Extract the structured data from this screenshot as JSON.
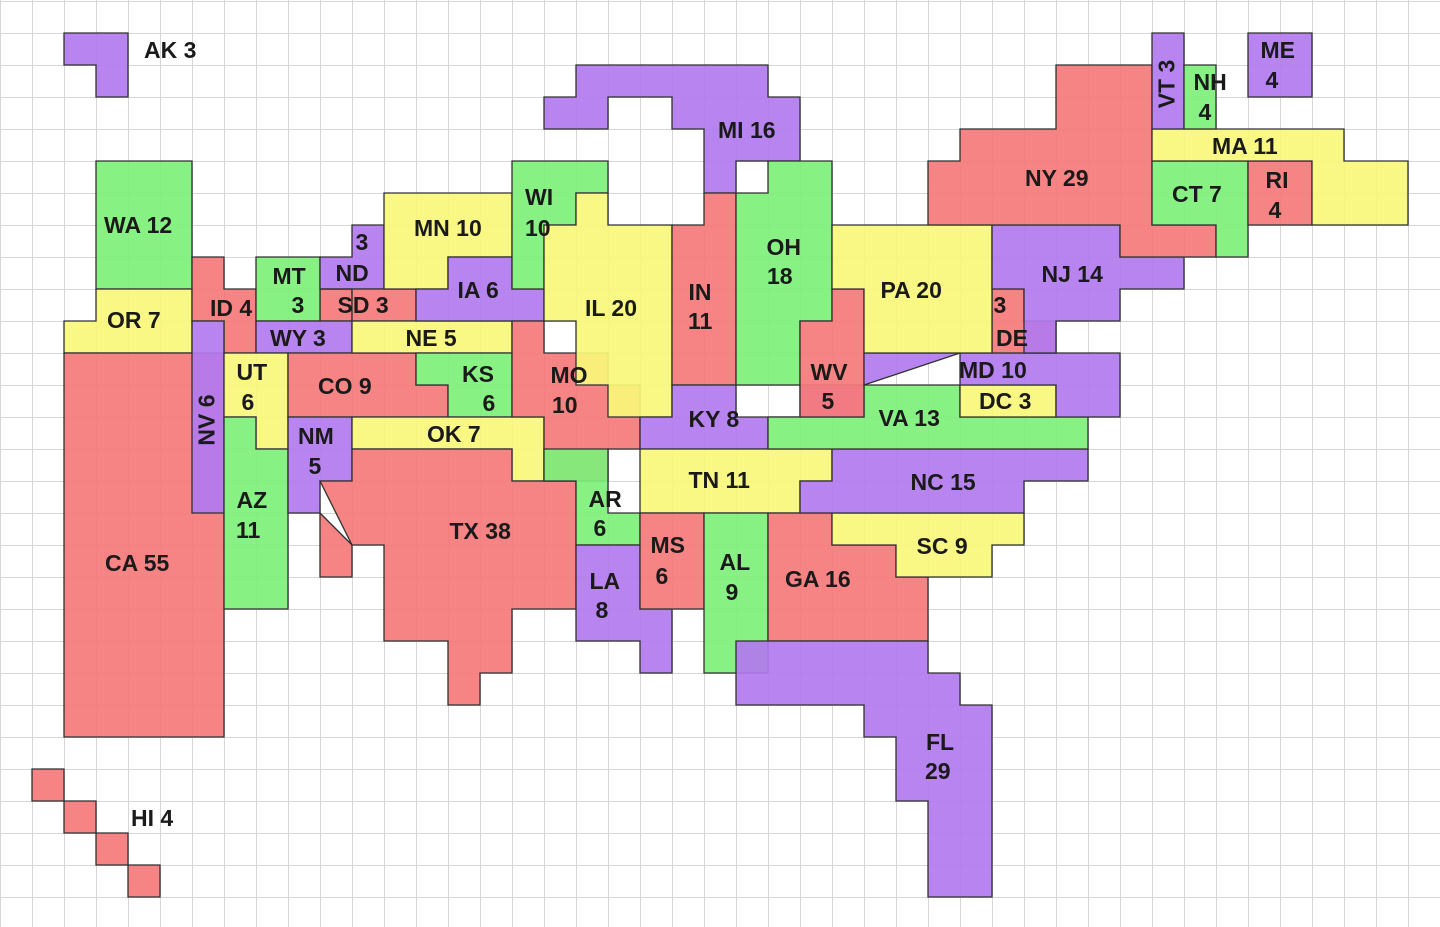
{
  "colors": {
    "red": "#f5797a",
    "purple": "#b279ef",
    "yellow": "#f9f77a",
    "green": "#7ef07a",
    "border": "#303030",
    "grid": "#d6d6d6"
  },
  "states": [
    {
      "code": "AK",
      "votes": 3,
      "label": "AK 3",
      "color": "purple"
    },
    {
      "code": "HI",
      "votes": 4,
      "label": "HI 4",
      "color": "red"
    },
    {
      "code": "WA",
      "votes": 12,
      "label": "WA 12",
      "color": "green"
    },
    {
      "code": "OR",
      "votes": 7,
      "label": "OR 7",
      "color": "yellow"
    },
    {
      "code": "CA",
      "votes": 55,
      "label": "CA 55",
      "color": "red"
    },
    {
      "code": "ID",
      "votes": 4,
      "label": "ID 4",
      "color": "red"
    },
    {
      "code": "NV",
      "votes": 6,
      "label": "NV 6",
      "color": "purple"
    },
    {
      "code": "MT",
      "votes": 3,
      "label": "MT 3",
      "color": "green"
    },
    {
      "code": "WY",
      "votes": 3,
      "label": "WY 3",
      "color": "purple"
    },
    {
      "code": "UT",
      "votes": 6,
      "label": "UT 6",
      "color": "yellow"
    },
    {
      "code": "AZ",
      "votes": 11,
      "label": "AZ 11",
      "color": "green"
    },
    {
      "code": "CO",
      "votes": 9,
      "label": "CO 9",
      "color": "red"
    },
    {
      "code": "NM",
      "votes": 5,
      "label": "NM 5",
      "color": "purple"
    },
    {
      "code": "ND",
      "votes": 3,
      "label": "ND 3",
      "color": "purple"
    },
    {
      "code": "SD",
      "votes": 3,
      "label": "SD 3",
      "color": "red"
    },
    {
      "code": "NE",
      "votes": 5,
      "label": "NE 5",
      "color": "yellow"
    },
    {
      "code": "KS",
      "votes": 6,
      "label": "KS 6",
      "color": "green"
    },
    {
      "code": "OK",
      "votes": 7,
      "label": "OK 7",
      "color": "yellow"
    },
    {
      "code": "TX",
      "votes": 38,
      "label": "TX 38",
      "color": "red"
    },
    {
      "code": "MN",
      "votes": 10,
      "label": "MN 10",
      "color": "yellow"
    },
    {
      "code": "IA",
      "votes": 6,
      "label": "IA 6",
      "color": "purple"
    },
    {
      "code": "MO",
      "votes": 10,
      "label": "MO 10",
      "color": "red"
    },
    {
      "code": "AR",
      "votes": 6,
      "label": "AR 6",
      "color": "green"
    },
    {
      "code": "LA",
      "votes": 8,
      "label": "LA 8",
      "color": "purple"
    },
    {
      "code": "WI",
      "votes": 10,
      "label": "WI 10",
      "color": "green"
    },
    {
      "code": "IL",
      "votes": 20,
      "label": "IL 20",
      "color": "yellow"
    },
    {
      "code": "MI",
      "votes": 16,
      "label": "MI 16",
      "color": "purple"
    },
    {
      "code": "IN",
      "votes": 11,
      "label": "IN 11",
      "color": "red"
    },
    {
      "code": "OH",
      "votes": 18,
      "label": "OH 18",
      "color": "green"
    },
    {
      "code": "KY",
      "votes": 8,
      "label": "KY 8",
      "color": "purple"
    },
    {
      "code": "TN",
      "votes": 11,
      "label": "TN 11",
      "color": "yellow"
    },
    {
      "code": "MS",
      "votes": 6,
      "label": "MS 6",
      "color": "red"
    },
    {
      "code": "AL",
      "votes": 9,
      "label": "AL 9",
      "color": "green"
    },
    {
      "code": "GA",
      "votes": 16,
      "label": "GA 16",
      "color": "red"
    },
    {
      "code": "FL",
      "votes": 29,
      "label": "FL 29",
      "color": "purple"
    },
    {
      "code": "SC",
      "votes": 9,
      "label": "SC 9",
      "color": "yellow"
    },
    {
      "code": "NC",
      "votes": 15,
      "label": "NC 15",
      "color": "purple"
    },
    {
      "code": "VA",
      "votes": 13,
      "label": "VA 13",
      "color": "green"
    },
    {
      "code": "WV",
      "votes": 5,
      "label": "WV 5",
      "color": "red"
    },
    {
      "code": "DC",
      "votes": 3,
      "label": "DC 3",
      "color": "yellow"
    },
    {
      "code": "MD",
      "votes": 10,
      "label": "MD 10",
      "color": "purple"
    },
    {
      "code": "DE",
      "votes": 3,
      "label": "3 DE",
      "color": "red"
    },
    {
      "code": "PA",
      "votes": 20,
      "label": "PA 20",
      "color": "yellow"
    },
    {
      "code": "NJ",
      "votes": 14,
      "label": "NJ 14",
      "color": "purple"
    },
    {
      "code": "NY",
      "votes": 29,
      "label": "NY 29",
      "color": "red"
    },
    {
      "code": "CT",
      "votes": 7,
      "label": "CT 7",
      "color": "green"
    },
    {
      "code": "RI",
      "votes": 4,
      "label": "RI 4",
      "color": "red"
    },
    {
      "code": "MA",
      "votes": 11,
      "label": "MA 11",
      "color": "yellow"
    },
    {
      "code": "VT",
      "votes": 3,
      "label": "VT 3",
      "color": "purple"
    },
    {
      "code": "NH",
      "votes": 4,
      "label": "NH 4",
      "color": "green"
    },
    {
      "code": "ME",
      "votes": 4,
      "label": "ME 4",
      "color": "purple"
    }
  ]
}
